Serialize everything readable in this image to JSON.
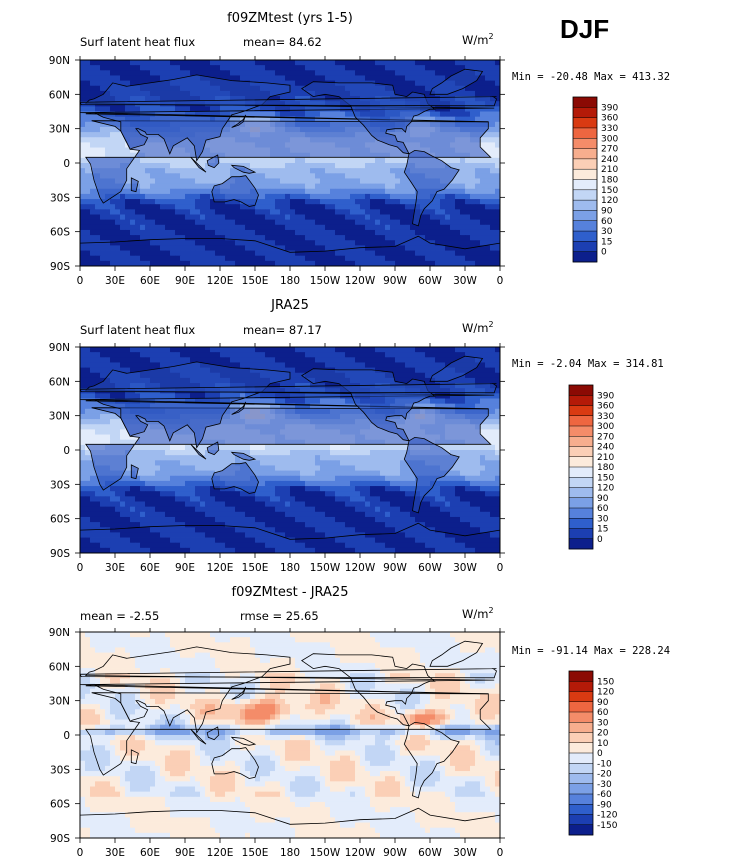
{
  "season": "DJF",
  "units": "W/m",
  "units_sup": "2",
  "chart_data": [
    {
      "type": "heatmap",
      "title": "f09ZMtest (yrs 1-5)",
      "variable": "Surf latent heat flux",
      "stat_label": "mean=",
      "stat_value": "84.62",
      "min_label": "Min =",
      "min_value": "-20.48",
      "max_label": "Max =",
      "max_value": "413.32",
      "x_ticks": [
        "0",
        "30E",
        "60E",
        "90E",
        "120E",
        "150E",
        "180",
        "150W",
        "120W",
        "90W",
        "60W",
        "30W",
        "0"
      ],
      "y_ticks": [
        "90N",
        "60N",
        "30N",
        "0",
        "30S",
        "60S",
        "90S"
      ],
      "levels": [
        "390",
        "360",
        "330",
        "300",
        "270",
        "240",
        "210",
        "180",
        "150",
        "120",
        "90",
        "60",
        "30",
        "15",
        "0"
      ],
      "colors": [
        "#8b0a04",
        "#b41a08",
        "#d93a12",
        "#ee6640",
        "#f48c69",
        "#f7ae8e",
        "#fbcfb6",
        "#fcebdc",
        "#e3ecfb",
        "#c2d6f5",
        "#9ebbee",
        "#7ba0e6",
        "#5681dc",
        "#2f5fcc",
        "#1c3fb2",
        "#0c1f8c"
      ],
      "mean_field": 84.62
    },
    {
      "type": "heatmap",
      "title": "JRA25",
      "variable": "Surf latent heat flux",
      "stat_label": "mean=",
      "stat_value": "87.17",
      "min_label": "Min =",
      "min_value": "-2.04",
      "max_label": "Max =",
      "max_value": "314.81",
      "x_ticks": [
        "0",
        "30E",
        "60E",
        "90E",
        "120E",
        "150E",
        "180",
        "150W",
        "120W",
        "90W",
        "60W",
        "30W",
        "0"
      ],
      "y_ticks": [
        "90N",
        "60N",
        "30N",
        "0",
        "30S",
        "60S",
        "90S"
      ],
      "levels": [
        "390",
        "360",
        "330",
        "300",
        "270",
        "240",
        "210",
        "180",
        "150",
        "120",
        "90",
        "60",
        "30",
        "15",
        "0"
      ],
      "colors": [
        "#8b0a04",
        "#b41a08",
        "#d93a12",
        "#ee6640",
        "#f48c69",
        "#f7ae8e",
        "#fbcfb6",
        "#fcebdc",
        "#e3ecfb",
        "#c2d6f5",
        "#9ebbee",
        "#7ba0e6",
        "#5681dc",
        "#2f5fcc",
        "#1c3fb2",
        "#0c1f8c"
      ],
      "mean_field": 87.17
    },
    {
      "type": "heatmap",
      "title": "f09ZMtest - JRA25",
      "variable": "mean =",
      "stat_label": "",
      "stat_value": "-2.55",
      "rmse_label": "rmse =",
      "rmse_value": "25.65",
      "min_label": "Min =",
      "min_value": "-91.14",
      "max_label": "Max =",
      "max_value": "228.24",
      "x_ticks": [
        "0",
        "30E",
        "60E",
        "90E",
        "120E",
        "150E",
        "180",
        "150W",
        "120W",
        "90W",
        "60W",
        "30W",
        "0"
      ],
      "y_ticks": [
        "90N",
        "60N",
        "30N",
        "0",
        "30S",
        "60S",
        "90S"
      ],
      "levels": [
        "150",
        "120",
        "90",
        "60",
        "30",
        "20",
        "10",
        "0",
        "-10",
        "-20",
        "-30",
        "-60",
        "-90",
        "-120",
        "-150"
      ],
      "colors": [
        "#8b0a04",
        "#b41a08",
        "#d93a12",
        "#ee6640",
        "#f48c69",
        "#f7ae8e",
        "#fbcfb6",
        "#fcebdc",
        "#e3ecfb",
        "#c2d6f5",
        "#9ebbee",
        "#7ba0e6",
        "#5681dc",
        "#2f5fcc",
        "#1c3fb2",
        "#0c1f8c"
      ],
      "mean_field": -2.55
    }
  ]
}
